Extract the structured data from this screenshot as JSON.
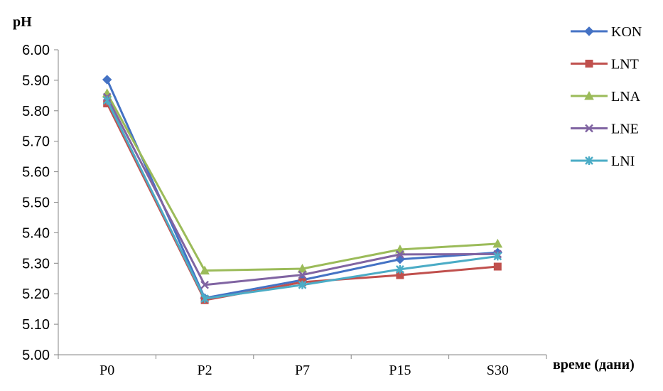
{
  "chart_data": {
    "type": "line",
    "ylabel": "pH",
    "xlabel": "време (дани)",
    "categories": [
      "P0",
      "P2",
      "P7",
      "P15",
      "S30"
    ],
    "ylim": [
      5.0,
      6.0
    ],
    "ytick_step": 0.1,
    "ytick_labels": [
      "5.00",
      "5.10",
      "5.20",
      "5.30",
      "5.40",
      "5.50",
      "5.60",
      "5.70",
      "5.80",
      "5.90",
      "6.00"
    ],
    "grid": false,
    "legend_position": "right",
    "series": [
      {
        "name": "KON",
        "color": "#4472C4",
        "marker": "diamond",
        "values": [
          5.902,
          5.186,
          5.245,
          5.313,
          5.335
        ]
      },
      {
        "name": "LNT",
        "color": "#C0504D",
        "marker": "square",
        "values": [
          5.824,
          5.179,
          5.238,
          5.261,
          5.289
        ]
      },
      {
        "name": "LNA",
        "color": "#9BBB59",
        "marker": "triangle",
        "values": [
          5.857,
          5.276,
          5.282,
          5.345,
          5.364
        ]
      },
      {
        "name": "LNE",
        "color": "#8064A2",
        "marker": "x",
        "values": [
          5.845,
          5.229,
          5.262,
          5.329,
          5.33
        ]
      },
      {
        "name": "LNI",
        "color": "#4BACC6",
        "marker": "star",
        "values": [
          5.834,
          5.184,
          5.229,
          5.28,
          5.323
        ]
      }
    ]
  }
}
